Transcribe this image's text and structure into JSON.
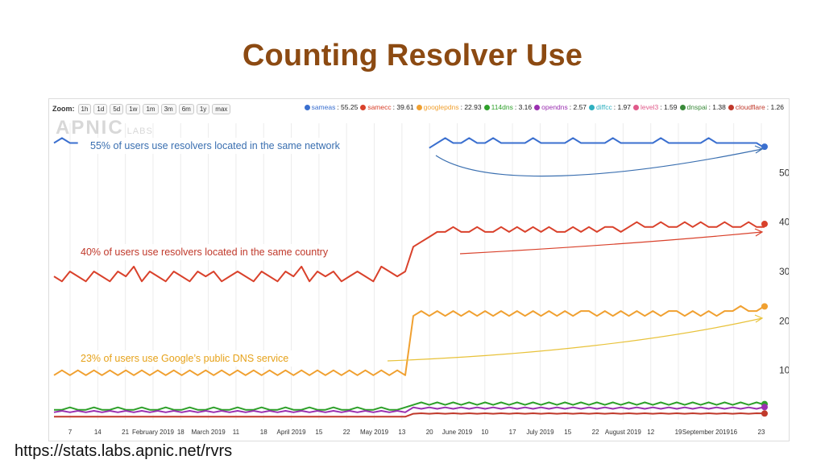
{
  "slide": {
    "title": "Counting Resolver Use",
    "source_url": "https://stats.labs.apnic.net/rvrs"
  },
  "chart": {
    "zoom_label": "Zoom:",
    "zoom_buttons": [
      "1h",
      "1d",
      "5d",
      "1w",
      "1m",
      "3m",
      "6m",
      "1y",
      "max"
    ],
    "watermark": "APNIC",
    "watermark_sub": "LABS",
    "legend": [
      {
        "name": "sameas",
        "value": "55.25",
        "color": "#3a6fcf"
      },
      {
        "name": "samecc",
        "value": "39.61",
        "color": "#d9412b"
      },
      {
        "name": "googlepdns",
        "value": "22.93",
        "color": "#f0a030"
      },
      {
        "name": "114dns",
        "value": "3.16",
        "color": "#2ea02a"
      },
      {
        "name": "opendns",
        "value": "2.57",
        "color": "#9a2fb0"
      },
      {
        "name": "diffcc",
        "value": "1.97",
        "color": "#2fb0c0"
      },
      {
        "name": "level3",
        "value": "1.59",
        "color": "#e05a8a"
      },
      {
        "name": "dnspai",
        "value": "1.38",
        "color": "#3a8a3a"
      },
      {
        "name": "cloudflare",
        "value": "1.26",
        "color": "#c0392b"
      }
    ],
    "annotations": {
      "blue": "55% of users use resolvers located in the same network",
      "red": "40% of users use resolvers located in the same country",
      "yellow": "23% of users use Google’s public DNS service"
    }
  },
  "chart_data": {
    "type": "line",
    "y_ticks": [
      10,
      20,
      30,
      40,
      50
    ],
    "x_ticks": [
      "7",
      "14",
      "21",
      "February 2019",
      "18",
      "March 2019",
      "11",
      "18",
      "April 2019",
      "15",
      "22",
      "May 2019",
      "13",
      "20",
      "June 2019",
      "10",
      "17",
      "July 2019",
      "15",
      "22",
      "August 2019",
      "12",
      "19",
      "September 2019",
      "16",
      "23"
    ],
    "series": [
      {
        "name": "sameas",
        "final": 55.25,
        "color": "#3a6fcf",
        "values": [
          56,
          57,
          56,
          56,
          null,
          null,
          null,
          null,
          null,
          null,
          null,
          null,
          null,
          null,
          null,
          null,
          null,
          null,
          null,
          null,
          null,
          null,
          null,
          null,
          null,
          null,
          null,
          null,
          null,
          null,
          null,
          null,
          null,
          null,
          null,
          null,
          null,
          null,
          null,
          null,
          null,
          null,
          null,
          null,
          null,
          null,
          null,
          55,
          56,
          57,
          56,
          56,
          57,
          56,
          56,
          57,
          56,
          56,
          56,
          56,
          57,
          56,
          56,
          56,
          56,
          57,
          56,
          56,
          56,
          56,
          57,
          56,
          56,
          56,
          56,
          56,
          57,
          56,
          56,
          56,
          56,
          56,
          57,
          56,
          56,
          56,
          56,
          56,
          56,
          55
        ]
      },
      {
        "name": "samecc",
        "final": 39.61,
        "color": "#d9412b",
        "values": [
          29,
          28,
          30,
          29,
          28,
          30,
          29,
          28,
          30,
          29,
          31,
          28,
          30,
          29,
          28,
          30,
          29,
          28,
          30,
          29,
          30,
          28,
          29,
          30,
          29,
          28,
          30,
          29,
          28,
          30,
          29,
          31,
          28,
          30,
          29,
          30,
          28,
          29,
          30,
          29,
          28,
          31,
          30,
          29,
          30,
          35,
          36,
          37,
          38,
          38,
          39,
          38,
          38,
          39,
          38,
          38,
          39,
          38,
          39,
          38,
          39,
          38,
          39,
          38,
          38,
          39,
          38,
          39,
          38,
          39,
          39,
          38,
          39,
          40,
          39,
          39,
          40,
          39,
          39,
          40,
          39,
          40,
          39,
          39,
          40,
          39,
          39,
          40,
          39,
          39
        ]
      },
      {
        "name": "googlepdns",
        "final": 22.93,
        "color": "#f0a030",
        "values": [
          9,
          10,
          9,
          10,
          9,
          10,
          9,
          10,
          9,
          10,
          9,
          10,
          9,
          10,
          9,
          10,
          9,
          10,
          9,
          10,
          9,
          10,
          9,
          10,
          9,
          10,
          9,
          10,
          9,
          10,
          9,
          10,
          9,
          10,
          9,
          10,
          9,
          10,
          9,
          10,
          9,
          10,
          9,
          10,
          9,
          21,
          22,
          21,
          22,
          21,
          22,
          21,
          22,
          21,
          22,
          21,
          22,
          21,
          22,
          21,
          22,
          21,
          22,
          21,
          22,
          21,
          22,
          22,
          21,
          22,
          21,
          22,
          21,
          22,
          21,
          22,
          21,
          22,
          22,
          21,
          22,
          21,
          22,
          21,
          22,
          22,
          23,
          22,
          22,
          23
        ]
      },
      {
        "name": "114dns",
        "final": 3.16,
        "color": "#2ea02a",
        "values": [
          2,
          2,
          2.5,
          2,
          2,
          2.5,
          2,
          2,
          2.5,
          2,
          2,
          2.5,
          2,
          2,
          2.5,
          2,
          2,
          2.5,
          2,
          2,
          2.5,
          2,
          2,
          2.5,
          2,
          2,
          2.5,
          2,
          2,
          2.5,
          2,
          2,
          2.5,
          2,
          2,
          2.5,
          2,
          2,
          2.5,
          2,
          2,
          2.5,
          2,
          2,
          2.5,
          3,
          3.5,
          3,
          3.5,
          3,
          3.5,
          3,
          3.5,
          3,
          3.5,
          3,
          3.5,
          3,
          3.5,
          3,
          3.5,
          3,
          3.5,
          3,
          3.5,
          3,
          3.5,
          3,
          3.5,
          3,
          3.5,
          3,
          3.5,
          3,
          3.5,
          3,
          3.5,
          3,
          3.5,
          3,
          3.5,
          3,
          3.5,
          3,
          3.5,
          3,
          3.5,
          3,
          3.5,
          3
        ]
      },
      {
        "name": "opendns",
        "final": 2.57,
        "color": "#9a2fb0",
        "values": [
          1.5,
          1.8,
          1.5,
          1.8,
          1.5,
          1.8,
          1.5,
          1.8,
          1.5,
          1.8,
          1.5,
          1.8,
          1.5,
          1.8,
          1.5,
          1.8,
          1.5,
          1.8,
          1.5,
          1.8,
          1.5,
          1.8,
          1.5,
          1.8,
          1.5,
          1.8,
          1.5,
          1.8,
          1.5,
          1.8,
          1.5,
          1.8,
          1.5,
          1.8,
          1.5,
          1.8,
          1.5,
          1.8,
          1.5,
          1.8,
          1.5,
          1.8,
          1.5,
          1.8,
          1.5,
          2.5,
          2.2,
          2.5,
          2.2,
          2.5,
          2.2,
          2.5,
          2.2,
          2.5,
          2.2,
          2.5,
          2.2,
          2.5,
          2.2,
          2.5,
          2.2,
          2.5,
          2.2,
          2.5,
          2.2,
          2.5,
          2.2,
          2.5,
          2.2,
          2.5,
          2.2,
          2.5,
          2.2,
          2.5,
          2.2,
          2.5,
          2.2,
          2.5,
          2.2,
          2.5,
          2.2,
          2.5,
          2.2,
          2.5,
          2.2,
          2.5,
          2.2,
          2.5,
          2.2,
          2.6
        ]
      },
      {
        "name": "cloudflare",
        "final": 1.26,
        "color": "#c0392b",
        "values": [
          0.6,
          0.6,
          0.6,
          0.6,
          0.6,
          0.6,
          0.6,
          0.6,
          0.6,
          0.6,
          0.6,
          0.6,
          0.6,
          0.6,
          0.6,
          0.6,
          0.6,
          0.6,
          0.6,
          0.6,
          0.6,
          0.6,
          0.6,
          0.6,
          0.6,
          0.6,
          0.6,
          0.6,
          0.6,
          0.6,
          0.6,
          0.6,
          0.6,
          0.6,
          0.6,
          0.6,
          0.6,
          0.6,
          0.6,
          0.6,
          0.6,
          0.6,
          0.6,
          0.6,
          0.6,
          1.2,
          1.3,
          1.2,
          1.3,
          1.2,
          1.3,
          1.2,
          1.3,
          1.2,
          1.3,
          1.2,
          1.3,
          1.2,
          1.3,
          1.2,
          1.3,
          1.2,
          1.3,
          1.2,
          1.3,
          1.2,
          1.3,
          1.2,
          1.3,
          1.2,
          1.3,
          1.2,
          1.3,
          1.2,
          1.3,
          1.2,
          1.3,
          1.2,
          1.3,
          1.2,
          1.3,
          1.2,
          1.3,
          1.2,
          1.3,
          1.2,
          1.3,
          1.2,
          1.3,
          1.26
        ]
      }
    ]
  }
}
